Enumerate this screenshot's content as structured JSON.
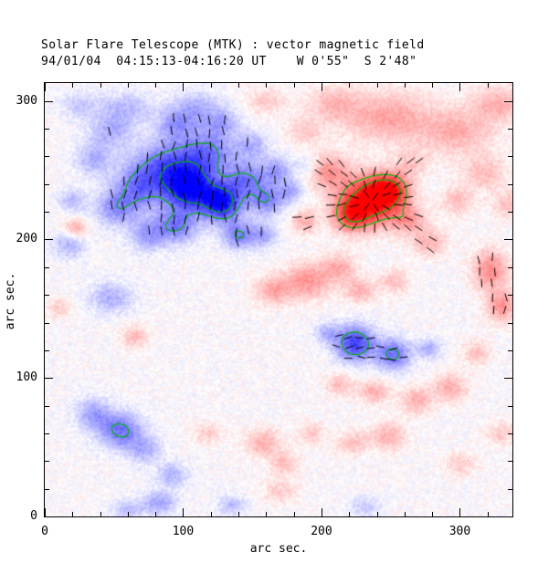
{
  "title": "Solar Flare Telescope (MTK) : vector magnetic field",
  "subtitle": "94/01/04  04:15:13-04:16:20 UT    W 0'55\"  S 2'48\"",
  "x_axis_label": "arc sec.",
  "y_axis_label": "arc sec.",
  "chart_data": {
    "type": "heatmap",
    "title": "Solar Flare Telescope (MTK) : vector magnetic field",
    "subtitle": "94/01/04  04:15:13-04:16:20 UT    W 0'55\"  S 2'48\"",
    "xlabel": "arc sec.",
    "ylabel": "arc sec.",
    "x_range": [
      0,
      338
    ],
    "y_range": [
      0,
      313
    ],
    "x_ticks": [
      0,
      100,
      200,
      300
    ],
    "y_ticks": [
      0,
      100,
      200,
      300
    ],
    "minor_tick_interval": 20,
    "grid": false,
    "colors": {
      "positive_polarity": "#ff0000",
      "negative_polarity": "#0000ff",
      "contour": "#00b400",
      "vector": "#000000",
      "background": "#ffffff"
    },
    "noise_amplitude": 0.09,
    "contour_levels": [
      0.5,
      0.8
    ],
    "blob_format": [
      "x_arcsec",
      "y_arcsec",
      "sigma_x",
      "sigma_y",
      "signed_amplitude"
    ],
    "blobs": [
      [
        105,
        237,
        13,
        11,
        -1.0
      ],
      [
        128,
        226,
        10,
        9,
        -0.9
      ],
      [
        88,
        254,
        16,
        12,
        -0.55
      ],
      [
        118,
        263,
        14,
        11,
        -0.5
      ],
      [
        68,
        238,
        13,
        11,
        -0.5
      ],
      [
        52,
        222,
        11,
        9,
        -0.4
      ],
      [
        145,
        243,
        11,
        9,
        -0.5
      ],
      [
        160,
        228,
        9,
        8,
        -0.45
      ],
      [
        95,
        210,
        11,
        9,
        -0.5
      ],
      [
        74,
        203,
        9,
        8,
        -0.35
      ],
      [
        140,
        203,
        8,
        7,
        -0.5
      ],
      [
        158,
        203,
        7,
        6,
        -0.35
      ],
      [
        35,
        258,
        9,
        8,
        -0.3
      ],
      [
        48,
        278,
        11,
        9,
        -0.3
      ],
      [
        95,
        283,
        10,
        8,
        -0.35
      ],
      [
        128,
        284,
        9,
        7,
        -0.3
      ],
      [
        168,
        250,
        8,
        7,
        -0.35
      ],
      [
        150,
        268,
        8,
        7,
        -0.3
      ],
      [
        110,
        295,
        12,
        8,
        -0.3
      ],
      [
        60,
        295,
        14,
        8,
        -0.25
      ],
      [
        25,
        297,
        10,
        7,
        -0.2
      ],
      [
        20,
        228,
        7,
        6,
        -0.25
      ],
      [
        178,
        235,
        7,
        6,
        -0.3
      ],
      [
        190,
        253,
        6,
        5,
        -0.2
      ],
      [
        48,
        158,
        11,
        8,
        -0.3
      ],
      [
        18,
        196,
        8,
        7,
        -0.3
      ],
      [
        55,
        62,
        11,
        9,
        -0.55
      ],
      [
        35,
        74,
        9,
        8,
        -0.35
      ],
      [
        72,
        48,
        8,
        7,
        -0.3
      ],
      [
        92,
        30,
        8,
        6,
        -0.3
      ],
      [
        83,
        10,
        9,
        6,
        -0.35
      ],
      [
        60,
        5,
        8,
        5,
        -0.25
      ],
      [
        224,
        125,
        10,
        9,
        -0.75
      ],
      [
        252,
        117,
        9,
        8,
        -0.55
      ],
      [
        278,
        121,
        6,
        5,
        -0.3
      ],
      [
        204,
        133,
        6,
        5,
        -0.25
      ],
      [
        232,
        7,
        8,
        5,
        -0.2
      ],
      [
        135,
        8,
        8,
        5,
        -0.25
      ],
      [
        235,
        228,
        15,
        12,
        1.0
      ],
      [
        249,
        236,
        10,
        8,
        0.7
      ],
      [
        221,
        217,
        9,
        8,
        0.55
      ],
      [
        205,
        249,
        11,
        9,
        0.4
      ],
      [
        263,
        214,
        9,
        7,
        0.35
      ],
      [
        188,
        213,
        7,
        6,
        0.3
      ],
      [
        190,
        170,
        12,
        9,
        0.4
      ],
      [
        213,
        180,
        9,
        7,
        0.3
      ],
      [
        165,
        163,
        9,
        7,
        0.35
      ],
      [
        228,
        163,
        8,
        6,
        0.3
      ],
      [
        253,
        170,
        7,
        6,
        0.25
      ],
      [
        278,
        198,
        9,
        7,
        0.3
      ],
      [
        298,
        228,
        8,
        7,
        0.25
      ],
      [
        322,
        178,
        9,
        10,
        0.45
      ],
      [
        330,
        152,
        8,
        8,
        0.4
      ],
      [
        335,
        225,
        8,
        7,
        0.25
      ],
      [
        312,
        118,
        7,
        6,
        0.25
      ],
      [
        293,
        93,
        9,
        7,
        0.3
      ],
      [
        268,
        84,
        8,
        7,
        0.3
      ],
      [
        238,
        90,
        8,
        6,
        0.3
      ],
      [
        213,
        95,
        7,
        6,
        0.25
      ],
      [
        248,
        58,
        9,
        7,
        0.3
      ],
      [
        222,
        53,
        8,
        6,
        0.25
      ],
      [
        193,
        60,
        7,
        6,
        0.2
      ],
      [
        158,
        53,
        9,
        7,
        0.3
      ],
      [
        173,
        38,
        7,
        6,
        0.25
      ],
      [
        300,
        38,
        8,
        6,
        0.2
      ],
      [
        330,
        60,
        8,
        6,
        0.2
      ],
      [
        170,
        18,
        9,
        6,
        0.2
      ],
      [
        118,
        60,
        7,
        5,
        0.2
      ],
      [
        248,
        288,
        22,
        13,
        0.35
      ],
      [
        298,
        278,
        18,
        12,
        0.3
      ],
      [
        328,
        298,
        13,
        9,
        0.3
      ],
      [
        208,
        298,
        13,
        9,
        0.25
      ],
      [
        318,
        248,
        11,
        9,
        0.25
      ],
      [
        188,
        278,
        9,
        7,
        0.2
      ],
      [
        265,
        255,
        9,
        7,
        0.2
      ],
      [
        160,
        300,
        10,
        7,
        0.2
      ],
      [
        22,
        208,
        6,
        5,
        0.35
      ],
      [
        65,
        130,
        7,
        6,
        0.25
      ],
      [
        10,
        150,
        6,
        5,
        0.2
      ]
    ],
    "vector_clusters": [
      {
        "name": "negative-region-vectors",
        "x_min": 30,
        "x_max": 182,
        "y_min": 188,
        "y_max": 294,
        "spacing": 9,
        "mode": "vertical",
        "sign": -1,
        "min_field": 0.3,
        "length": 10
      },
      {
        "name": "positive-spot-vectors",
        "x_min": 183,
        "x_max": 283,
        "y_min": 192,
        "y_max": 266,
        "spacing": 8,
        "mode": "radial",
        "center_x": 236,
        "center_y": 228,
        "sign": 1,
        "min_field": 0.18,
        "length": 10
      },
      {
        "name": "small-negative-vectors",
        "x_min": 204,
        "x_max": 272,
        "y_min": 106,
        "y_max": 142,
        "spacing": 8,
        "mode": "horizontal",
        "sign": -1,
        "min_field": 0.3,
        "length": 9
      },
      {
        "name": "east-edge-vectors",
        "x_min": 306,
        "x_max": 336,
        "y_min": 132,
        "y_max": 200,
        "spacing": 9,
        "mode": "vertical",
        "sign": 1,
        "min_field": 0.22,
        "length": 9
      }
    ]
  }
}
